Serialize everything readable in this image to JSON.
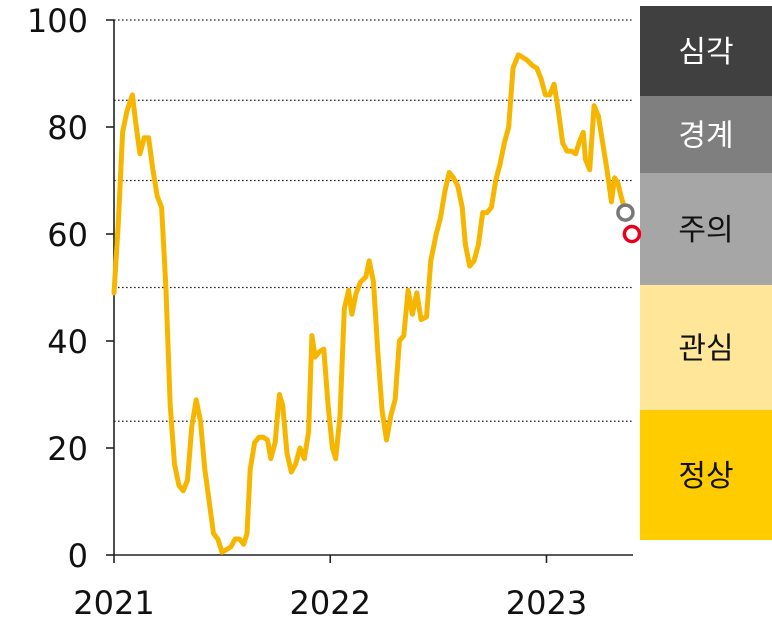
{
  "chart_data": {
    "type": "line",
    "title": "",
    "xlabel": "",
    "ylabel": "",
    "xlim": [
      2021.0,
      2023.4
    ],
    "ylim": [
      0,
      100
    ],
    "y_ticks": [
      "0",
      "20",
      "40",
      "60",
      "80",
      "100"
    ],
    "x_ticks": [
      {
        "value": 2021,
        "label": "2021"
      },
      {
        "value": 2022,
        "label": "2022"
      },
      {
        "value": 2023,
        "label": "2023"
      }
    ],
    "threshold_lines": [
      25,
      50,
      70,
      85,
      100
    ],
    "grid": false,
    "legend": "none",
    "line_color": "#F6B600",
    "series": [
      {
        "values": [
          [
            2021.0,
            49
          ],
          [
            2021.02,
            62
          ],
          [
            2021.04,
            79
          ],
          [
            2021.06,
            83
          ],
          [
            2021.085,
            86
          ],
          [
            2021.1,
            81
          ],
          [
            2021.12,
            75
          ],
          [
            2021.14,
            78
          ],
          [
            2021.16,
            78
          ],
          [
            2021.18,
            72
          ],
          [
            2021.2,
            67
          ],
          [
            2021.22,
            65
          ],
          [
            2021.24,
            50
          ],
          [
            2021.26,
            28
          ],
          [
            2021.28,
            17
          ],
          [
            2021.3,
            13
          ],
          [
            2021.32,
            12
          ],
          [
            2021.34,
            14
          ],
          [
            2021.36,
            24
          ],
          [
            2021.38,
            29
          ],
          [
            2021.4,
            25
          ],
          [
            2021.42,
            16
          ],
          [
            2021.44,
            10
          ],
          [
            2021.46,
            4
          ],
          [
            2021.48,
            3
          ],
          [
            2021.5,
            0.5
          ],
          [
            2021.52,
            1
          ],
          [
            2021.54,
            1.5
          ],
          [
            2021.56,
            3
          ],
          [
            2021.58,
            3
          ],
          [
            2021.6,
            2
          ],
          [
            2021.615,
            4
          ],
          [
            2021.63,
            16
          ],
          [
            2021.65,
            21
          ],
          [
            2021.67,
            22
          ],
          [
            2021.69,
            22
          ],
          [
            2021.71,
            21.5
          ],
          [
            2021.725,
            18
          ],
          [
            2021.745,
            21
          ],
          [
            2021.765,
            30
          ],
          [
            2021.78,
            28
          ],
          [
            2021.8,
            19
          ],
          [
            2021.82,
            15.5
          ],
          [
            2021.84,
            17
          ],
          [
            2021.86,
            20
          ],
          [
            2021.88,
            18
          ],
          [
            2021.9,
            23
          ],
          [
            2021.915,
            41
          ],
          [
            2021.93,
            37
          ],
          [
            2021.95,
            38
          ],
          [
            2021.97,
            38.5
          ],
          [
            2021.99,
            28
          ],
          [
            2022.01,
            20
          ],
          [
            2022.025,
            18
          ],
          [
            2022.045,
            26
          ],
          [
            2022.065,
            46
          ],
          [
            2022.085,
            49.5
          ],
          [
            2022.1,
            45
          ],
          [
            2022.12,
            49
          ],
          [
            2022.14,
            51
          ],
          [
            2022.165,
            52
          ],
          [
            2022.18,
            55
          ],
          [
            2022.2,
            51
          ],
          [
            2022.22,
            38
          ],
          [
            2022.24,
            27
          ],
          [
            2022.26,
            21.5
          ],
          [
            2022.28,
            26
          ],
          [
            2022.3,
            29
          ],
          [
            2022.32,
            40
          ],
          [
            2022.34,
            41
          ],
          [
            2022.36,
            49.5
          ],
          [
            2022.38,
            45
          ],
          [
            2022.4,
            49
          ],
          [
            2022.42,
            44
          ],
          [
            2022.445,
            44.5
          ],
          [
            2022.465,
            55
          ],
          [
            2022.49,
            60
          ],
          [
            2022.51,
            63
          ],
          [
            2022.53,
            68
          ],
          [
            2022.55,
            71.5
          ],
          [
            2022.57,
            70.5
          ],
          [
            2022.59,
            69
          ],
          [
            2022.61,
            65
          ],
          [
            2022.625,
            58
          ],
          [
            2022.645,
            54
          ],
          [
            2022.665,
            55
          ],
          [
            2022.685,
            58
          ],
          [
            2022.705,
            64
          ],
          [
            2022.725,
            64
          ],
          [
            2022.745,
            65
          ],
          [
            2022.765,
            70
          ],
          [
            2022.785,
            73
          ],
          [
            2022.805,
            77
          ],
          [
            2022.825,
            80
          ],
          [
            2022.845,
            91
          ],
          [
            2022.87,
            93.5
          ],
          [
            2022.89,
            93
          ],
          [
            2022.91,
            92.5
          ],
          [
            2022.935,
            91.5
          ],
          [
            2022.955,
            91
          ],
          [
            2022.975,
            89
          ],
          [
            2022.995,
            86
          ],
          [
            2023.015,
            86
          ],
          [
            2023.035,
            88
          ],
          [
            2023.055,
            83
          ],
          [
            2023.075,
            77
          ],
          [
            2023.095,
            75.5
          ],
          [
            2023.115,
            75.5
          ],
          [
            2023.135,
            75
          ],
          [
            2023.15,
            77
          ],
          [
            2023.17,
            79
          ],
          [
            2023.18,
            74
          ],
          [
            2023.2,
            72
          ],
          [
            2023.22,
            84
          ],
          [
            2023.24,
            82
          ],
          [
            2023.26,
            77
          ],
          [
            2023.28,
            72
          ],
          [
            2023.3,
            66
          ],
          [
            2023.315,
            70.5
          ],
          [
            2023.33,
            69.5
          ],
          [
            2023.345,
            67
          ],
          [
            2023.36,
            65
          ]
        ]
      }
    ],
    "end_markers": [
      {
        "x": 2023.365,
        "y": 64,
        "color": "#777777"
      },
      {
        "x": 2023.395,
        "y": 60,
        "color": "#E8001C"
      }
    ],
    "bands": [
      {
        "label": "심각",
        "from": 85,
        "to": 100,
        "bg": "#404040",
        "fg": "#FFFFFF"
      },
      {
        "label": "경계",
        "from": 70,
        "to": 85,
        "bg": "#7F7F7F",
        "fg": "#FFFFFF"
      },
      {
        "label": "주의",
        "from": 50,
        "to": 70,
        "bg": "#A6A6A6",
        "fg": "#111111"
      },
      {
        "label": "관심",
        "from": 25,
        "to": 50,
        "bg": "#FFE699",
        "fg": "#111111"
      },
      {
        "label": "정상",
        "from": 0,
        "to": 25,
        "bg": "#FFCC00",
        "fg": "#111111"
      }
    ]
  }
}
